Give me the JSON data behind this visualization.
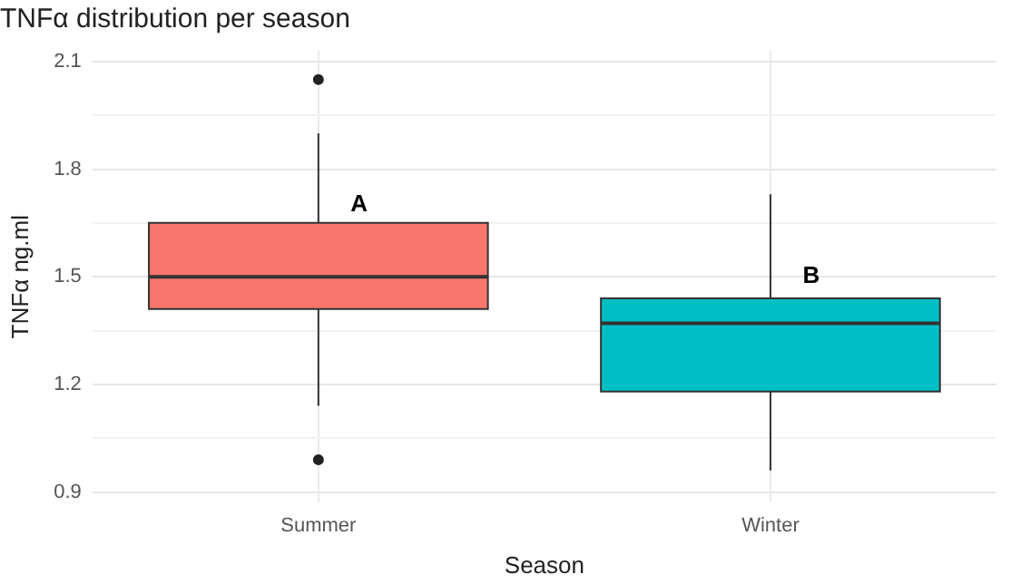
{
  "chart_data": {
    "type": "box",
    "title": "TNFα distribution per season",
    "xlabel": "Season",
    "ylabel": "TNFα ng.ml",
    "categories": [
      "Summer",
      "Winter"
    ],
    "boxes": [
      {
        "low": 1.14,
        "q1": 1.41,
        "median": 1.5,
        "q3": 1.65,
        "high": 1.9,
        "outliers": [
          2.05,
          0.99
        ]
      },
      {
        "low": 0.96,
        "q1": 1.18,
        "median": 1.37,
        "q3": 1.44,
        "high": 1.73
      }
    ],
    "colors": [
      "#f8766d",
      "#00bfc4"
    ],
    "ylim": [
      0.87,
      2.13
    ],
    "yticks": [
      0.9,
      {
        "value": 1.05,
        "label": null
      },
      1.2,
      {
        "value": 1.35,
        "label": null
      },
      1.5,
      {
        "value": 1.65,
        "label": null
      },
      1.8,
      {
        "value": 1.95,
        "label": null
      },
      2.1
    ],
    "grid": true,
    "annotations": [
      {
        "text": "A",
        "x": "Summer",
        "y": 1.7
      },
      {
        "text": "B",
        "x": "Winter",
        "y": 1.5
      }
    ]
  }
}
